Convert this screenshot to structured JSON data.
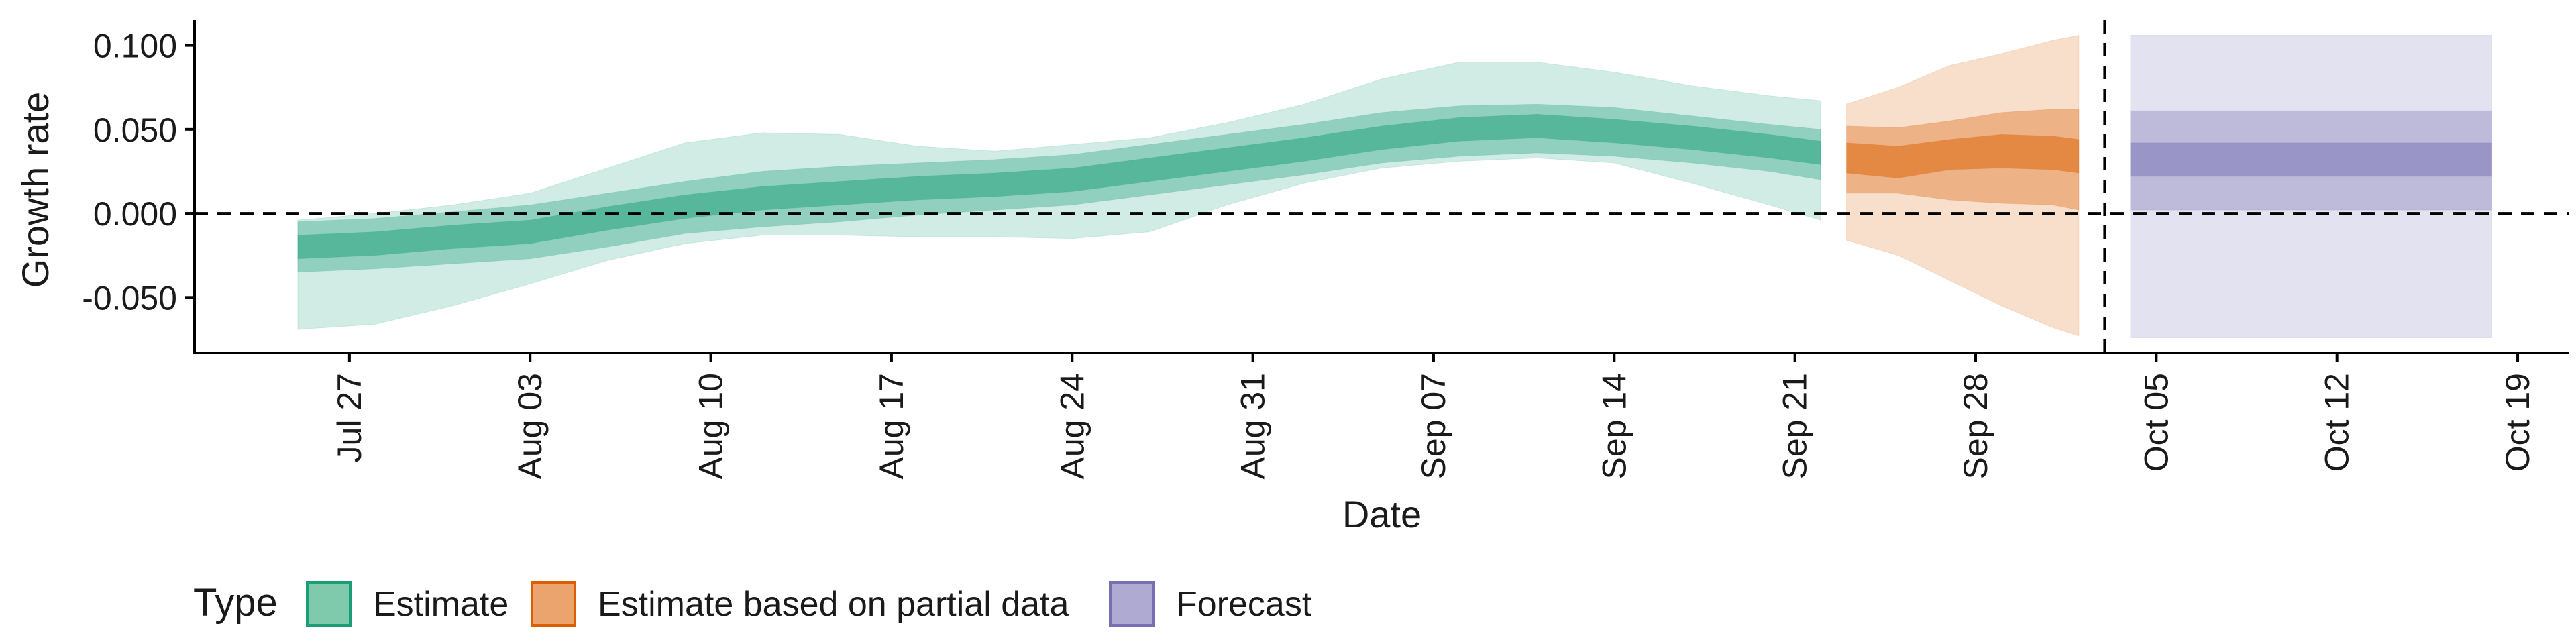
{
  "chart_data": {
    "type": "area",
    "xlabel": "Date",
    "ylabel": "Growth rate",
    "x_range": [
      "2020-07-21",
      "2020-10-21"
    ],
    "ylim": [
      -0.083,
      0.115
    ],
    "x_ticks": [
      {
        "date": "2020-07-27",
        "label": "Jul 27"
      },
      {
        "date": "2020-08-03",
        "label": "Aug 03"
      },
      {
        "date": "2020-08-10",
        "label": "Aug 10"
      },
      {
        "date": "2020-08-17",
        "label": "Aug 17"
      },
      {
        "date": "2020-08-24",
        "label": "Aug 24"
      },
      {
        "date": "2020-08-31",
        "label": "Aug 31"
      },
      {
        "date": "2020-09-07",
        "label": "Sep 07"
      },
      {
        "date": "2020-09-14",
        "label": "Sep 14"
      },
      {
        "date": "2020-09-21",
        "label": "Sep 21"
      },
      {
        "date": "2020-09-28",
        "label": "Sep 28"
      },
      {
        "date": "2020-10-05",
        "label": "Oct 05"
      },
      {
        "date": "2020-10-12",
        "label": "Oct 12"
      },
      {
        "date": "2020-10-19",
        "label": "Oct 19"
      }
    ],
    "y_ticks": [
      {
        "value": 0.1,
        "label": "0.100"
      },
      {
        "value": 0.05,
        "label": "0.050"
      },
      {
        "value": 0.0,
        "label": "0.000"
      },
      {
        "value": -0.05,
        "label": "-0.050"
      }
    ],
    "reference_lines": {
      "horizontal_y": 0.0,
      "vertical_date": "2020-10-03",
      "style": "dashed"
    },
    "grid": false,
    "legend": {
      "title": "Type",
      "position": "bottom-left",
      "entries": [
        {
          "label": "Estimate",
          "fill": "#7fc9ac",
          "stroke": "#1b9e77"
        },
        {
          "label": "Estimate based on partial data",
          "fill": "#eba46d",
          "stroke": "#d95f02"
        },
        {
          "label": "Forecast",
          "fill": "#aeaad2",
          "stroke": "#7570b3"
        }
      ]
    },
    "series": [
      {
        "name": "Estimate",
        "color": "#1b9e77",
        "band_opacity": [
          0.2,
          0.35,
          0.5
        ],
        "points": [
          {
            "date": "2020-07-25",
            "median": -0.02,
            "q25": [
              -0.027,
              -0.013
            ],
            "q75": [
              -0.035,
              -0.005
            ],
            "q90": [
              -0.069,
              -0.004
            ]
          },
          {
            "date": "2020-07-28",
            "median": -0.018,
            "q25": [
              -0.025,
              -0.011
            ],
            "q75": [
              -0.033,
              -0.003
            ],
            "q90": [
              -0.066,
              0.0
            ]
          },
          {
            "date": "2020-07-31",
            "median": -0.014,
            "q25": [
              -0.021,
              -0.007
            ],
            "q75": [
              -0.03,
              0.001
            ],
            "q90": [
              -0.055,
              0.005
            ]
          },
          {
            "date": "2020-08-03",
            "median": -0.011,
            "q25": [
              -0.018,
              -0.004
            ],
            "q75": [
              -0.027,
              0.005
            ],
            "q90": [
              -0.042,
              0.012
            ]
          },
          {
            "date": "2020-08-06",
            "median": -0.003,
            "q25": [
              -0.01,
              0.004
            ],
            "q75": [
              -0.02,
              0.012
            ],
            "q90": [
              -0.028,
              0.027
            ]
          },
          {
            "date": "2020-08-09",
            "median": 0.004,
            "q25": [
              -0.003,
              0.011
            ],
            "q75": [
              -0.012,
              0.019
            ],
            "q90": [
              -0.018,
              0.042
            ]
          },
          {
            "date": "2020-08-12",
            "median": 0.009,
            "q25": [
              0.002,
              0.016
            ],
            "q75": [
              -0.008,
              0.025
            ],
            "q90": [
              -0.013,
              0.048
            ]
          },
          {
            "date": "2020-08-15",
            "median": 0.012,
            "q25": [
              0.005,
              0.019
            ],
            "q75": [
              -0.005,
              0.028
            ],
            "q90": [
              -0.013,
              0.047
            ]
          },
          {
            "date": "2020-08-18",
            "median": 0.015,
            "q25": [
              0.008,
              0.022
            ],
            "q75": [
              -0.001,
              0.03
            ],
            "q90": [
              -0.014,
              0.04
            ]
          },
          {
            "date": "2020-08-21",
            "median": 0.017,
            "q25": [
              0.01,
              0.024
            ],
            "q75": [
              0.002,
              0.032
            ],
            "q90": [
              -0.014,
              0.037
            ]
          },
          {
            "date": "2020-08-24",
            "median": 0.02,
            "q25": [
              0.013,
              0.027
            ],
            "q75": [
              0.005,
              0.035
            ],
            "q90": [
              -0.015,
              0.041
            ]
          },
          {
            "date": "2020-08-27",
            "median": 0.026,
            "q25": [
              0.019,
              0.033
            ],
            "q75": [
              0.011,
              0.041
            ],
            "q90": [
              -0.011,
              0.045
            ]
          },
          {
            "date": "2020-08-30",
            "median": 0.032,
            "q25": [
              0.025,
              0.039
            ],
            "q75": [
              0.017,
              0.047
            ],
            "q90": [
              0.005,
              0.054
            ]
          },
          {
            "date": "2020-09-02",
            "median": 0.038,
            "q25": [
              0.031,
              0.045
            ],
            "q75": [
              0.023,
              0.053
            ],
            "q90": [
              0.018,
              0.065
            ]
          },
          {
            "date": "2020-09-05",
            "median": 0.045,
            "q25": [
              0.038,
              0.052
            ],
            "q75": [
              0.03,
              0.06
            ],
            "q90": [
              0.027,
              0.08
            ]
          },
          {
            "date": "2020-09-08",
            "median": 0.05,
            "q25": [
              0.043,
              0.057
            ],
            "q75": [
              0.034,
              0.064
            ],
            "q90": [
              0.031,
              0.09
            ]
          },
          {
            "date": "2020-09-11",
            "median": 0.052,
            "q25": [
              0.045,
              0.059
            ],
            "q75": [
              0.036,
              0.065
            ],
            "q90": [
              0.033,
              0.09
            ]
          },
          {
            "date": "2020-09-14",
            "median": 0.049,
            "q25": [
              0.042,
              0.056
            ],
            "q75": [
              0.034,
              0.063
            ],
            "q90": [
              0.03,
              0.084
            ]
          },
          {
            "date": "2020-09-17",
            "median": 0.045,
            "q25": [
              0.038,
              0.052
            ],
            "q75": [
              0.03,
              0.058
            ],
            "q90": [
              0.018,
              0.076
            ]
          },
          {
            "date": "2020-09-20",
            "median": 0.04,
            "q25": [
              0.033,
              0.047
            ],
            "q75": [
              0.025,
              0.053
            ],
            "q90": [
              0.005,
              0.07
            ]
          },
          {
            "date": "2020-09-22",
            "median": 0.036,
            "q25": [
              0.029,
              0.043
            ],
            "q75": [
              0.02,
              0.05
            ],
            "q90": [
              -0.004,
              0.067
            ]
          }
        ]
      },
      {
        "name": "Estimate based on partial data",
        "color": "#d95f02",
        "band_opacity": [
          0.2,
          0.35,
          0.5
        ],
        "points": [
          {
            "date": "2020-09-23",
            "median": 0.033,
            "q25": [
              0.024,
              0.042
            ],
            "q75": [
              0.012,
              0.052
            ],
            "q90": [
              -0.016,
              0.065
            ]
          },
          {
            "date": "2020-09-25",
            "median": 0.03,
            "q25": [
              0.021,
              0.04
            ],
            "q75": [
              0.012,
              0.051
            ],
            "q90": [
              -0.025,
              0.075
            ]
          },
          {
            "date": "2020-09-27",
            "median": 0.035,
            "q25": [
              0.026,
              0.044
            ],
            "q75": [
              0.008,
              0.055
            ],
            "q90": [
              -0.04,
              0.088
            ]
          },
          {
            "date": "2020-09-29",
            "median": 0.037,
            "q25": [
              0.027,
              0.047
            ],
            "q75": [
              0.006,
              0.06
            ],
            "q90": [
              -0.055,
              0.095
            ]
          },
          {
            "date": "2020-10-01",
            "median": 0.036,
            "q25": [
              0.026,
              0.046
            ],
            "q75": [
              0.005,
              0.062
            ],
            "q90": [
              -0.068,
              0.103
            ]
          },
          {
            "date": "2020-10-02",
            "median": 0.034,
            "q25": [
              0.024,
              0.044
            ],
            "q75": [
              0.002,
              0.062
            ],
            "q90": [
              -0.073,
              0.106
            ]
          }
        ]
      },
      {
        "name": "Forecast",
        "color": "#7570b3",
        "band_opacity": [
          0.2,
          0.35,
          0.5
        ],
        "points": [
          {
            "date": "2020-10-04",
            "median": 0.032,
            "q25": [
              0.022,
              0.042
            ],
            "q75": [
              0.002,
              0.061
            ],
            "q90": [
              -0.074,
              0.106
            ]
          },
          {
            "date": "2020-10-18",
            "median": 0.032,
            "q25": [
              0.022,
              0.042
            ],
            "q75": [
              0.002,
              0.061
            ],
            "q90": [
              -0.074,
              0.106
            ]
          }
        ]
      }
    ]
  }
}
